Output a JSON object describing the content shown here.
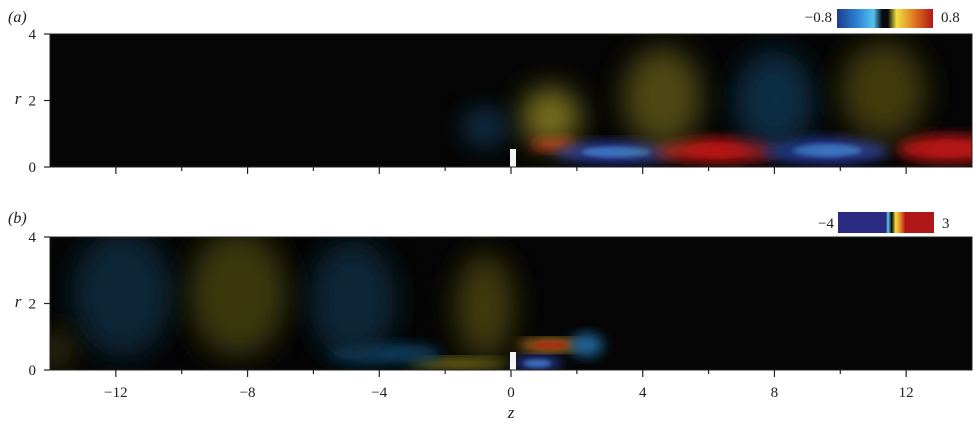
{
  "chart_data": [
    {
      "type": "heatmap",
      "panel_label": "(a)",
      "title": "",
      "xlabel": "",
      "ylabel": "r",
      "xlim": [
        -14,
        14
      ],
      "ylim": [
        0,
        4
      ],
      "x_ticks": [
        -12,
        -8,
        -4,
        0,
        4,
        8,
        12
      ],
      "y_ticks": [
        0,
        2,
        4
      ],
      "y_tick_labels": [
        "0",
        "2",
        "4"
      ],
      "colorbar": {
        "min": -0.8,
        "max": 0.8,
        "min_label": "−0.8",
        "max_label": "0.8"
      },
      "features": [
        {
          "name": "lobe-pos",
          "z": 1.3,
          "r": 0.7,
          "rz": 0.7,
          "rr": 0.22,
          "value": 0.8
        },
        {
          "name": "lobe-neg",
          "z": 3.2,
          "r": 0.45,
          "rz": 1.9,
          "rr": 0.32,
          "value": -0.8
        },
        {
          "name": "lobe-pos",
          "z": 6.3,
          "r": 0.5,
          "rz": 1.9,
          "rr": 0.38,
          "value": 0.8
        },
        {
          "name": "lobe-neg",
          "z": 9.6,
          "r": 0.5,
          "rz": 1.9,
          "rr": 0.38,
          "value": -0.8
        },
        {
          "name": "lobe-pos",
          "z": 13.3,
          "r": 0.55,
          "rz": 1.6,
          "rr": 0.42,
          "value": 0.8
        },
        {
          "name": "halo",
          "z": 4.6,
          "r": 2.1,
          "rz": 1.2,
          "rr": 1.5,
          "value": 0.18
        },
        {
          "name": "halo",
          "z": 8.0,
          "r": 2.0,
          "rz": 1.2,
          "rr": 1.5,
          "value": -0.15
        },
        {
          "name": "halo",
          "z": 11.3,
          "r": 2.3,
          "rz": 1.3,
          "rr": 1.5,
          "value": 0.15
        },
        {
          "name": "halo",
          "z": 1.2,
          "r": 1.5,
          "rz": 0.9,
          "rr": 0.9,
          "value": 0.25
        },
        {
          "name": "halo",
          "z": -0.8,
          "r": 1.2,
          "rz": 0.6,
          "rr": 0.5,
          "value": -0.2
        }
      ]
    },
    {
      "type": "heatmap",
      "panel_label": "(b)",
      "title": "",
      "xlabel": "z",
      "ylabel": "r",
      "xlim": [
        -14,
        14
      ],
      "ylim": [
        0,
        4
      ],
      "x_ticks": [
        -12,
        -8,
        -4,
        0,
        4,
        8,
        12
      ],
      "x_tick_labels": [
        "−12",
        "−8",
        "−4",
        "0",
        "4",
        "8",
        "12"
      ],
      "y_ticks": [
        0,
        2,
        4
      ],
      "y_tick_labels": [
        "0",
        "2",
        "4"
      ],
      "colorbar": {
        "min": -4,
        "max": 3,
        "min_label": "−4",
        "max_label": "3"
      },
      "features": [
        {
          "name": "core-neg",
          "z": 0.8,
          "r": 0.2,
          "rz": 0.75,
          "rr": 0.22,
          "value": -4
        },
        {
          "name": "arc-pos",
          "z": 1.2,
          "r": 0.75,
          "rz": 1.0,
          "rr": 0.17,
          "value": 3
        },
        {
          "name": "arc-neg",
          "z": 2.3,
          "r": 0.75,
          "rz": 0.5,
          "rr": 0.35,
          "value": -1.4
        },
        {
          "name": "band-pos",
          "z": -1.6,
          "r": 0.2,
          "rz": 1.5,
          "rr": 0.15,
          "value": 1.3
        },
        {
          "name": "band-neg",
          "z": -3.8,
          "r": 0.5,
          "rz": 1.7,
          "rr": 0.3,
          "value": -0.9
        },
        {
          "name": "plume",
          "z": -0.8,
          "r": 1.9,
          "rz": 0.9,
          "rr": 1.6,
          "value": 0.75
        },
        {
          "name": "plume",
          "z": -4.8,
          "r": 2.1,
          "rz": 1.3,
          "rr": 1.8,
          "value": -0.6
        },
        {
          "name": "plume",
          "z": -8.3,
          "r": 2.3,
          "rz": 1.5,
          "rr": 1.9,
          "value": 0.7
        },
        {
          "name": "plume",
          "z": -11.8,
          "r": 2.3,
          "rz": 1.5,
          "rr": 1.9,
          "value": -0.6
        },
        {
          "name": "plume",
          "z": -13.8,
          "r": 0.6,
          "rz": 0.5,
          "rr": 0.6,
          "value": 0.6
        }
      ]
    }
  ]
}
